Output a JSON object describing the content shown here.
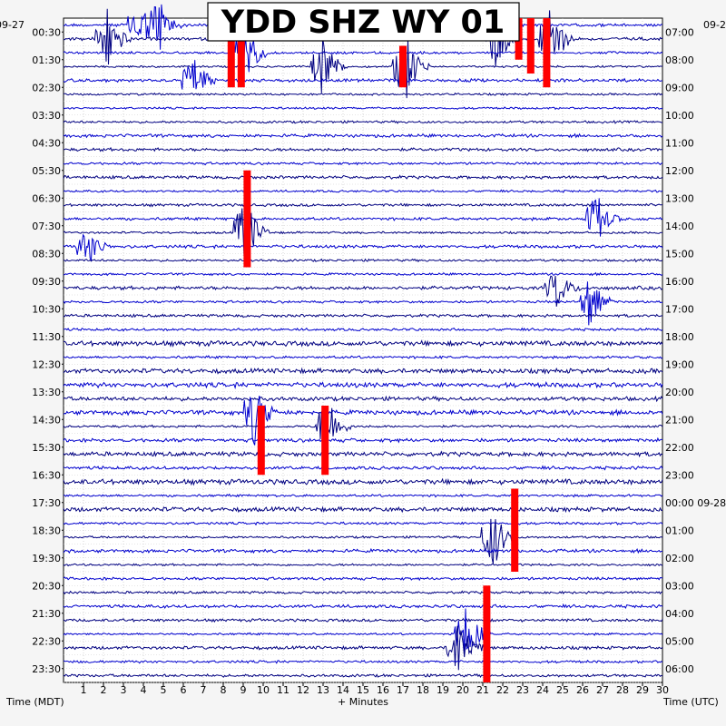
{
  "chart_data": {
    "type": "helicorder",
    "title": "YDD SHZ WY 01",
    "left_corner_date": "09-27",
    "right_corner_date": "09-2",
    "xlabel_left": "Time (MDT)",
    "xlabel_center": "+ Minutes",
    "xlabel_right": "Time (UTC)",
    "xlim": [
      0,
      30
    ],
    "x_ticks": [
      "1",
      "2",
      "3",
      "4",
      "5",
      "6",
      "7",
      "8",
      "9",
      "10",
      "11",
      "12",
      "13",
      "14",
      "15",
      "16",
      "17",
      "18",
      "19",
      "20",
      "21",
      "22",
      "23",
      "24",
      "25",
      "26",
      "27",
      "28",
      "29",
      "30"
    ],
    "left_times": [
      "00:30",
      "01:30",
      "02:30",
      "03:30",
      "04:30",
      "05:30",
      "06:30",
      "07:30",
      "08:30",
      "09:30",
      "10:30",
      "11:30",
      "12:30",
      "13:30",
      "14:30",
      "15:30",
      "16:30",
      "17:30",
      "18:30",
      "19:30",
      "20:30",
      "21:30",
      "22:30",
      "23:30"
    ],
    "right_times": [
      "07:00",
      "08:00",
      "09:00",
      "10:00",
      "11:00",
      "12:00",
      "13:00",
      "14:00",
      "15:00",
      "16:00",
      "17:00",
      "18:00",
      "19:00",
      "20:00",
      "21:00",
      "22:00",
      "23:00",
      "00:00 09-28",
      "01:00",
      "02:00",
      "03:00",
      "04:00",
      "05:00",
      "06:00"
    ],
    "trace_colors": [
      "#0000cd",
      "#000080"
    ],
    "clip_color": "#ff0000",
    "trace_count": 48,
    "events": [
      {
        "trace": 1,
        "minute": 2.0,
        "amp": 2.5
      },
      {
        "trace": 0,
        "minute": 3.6,
        "amp": 2.0
      },
      {
        "trace": 0,
        "minute": 4.6,
        "amp": 2.0
      },
      {
        "trace": 4,
        "minute": 6.3,
        "amp": 2.0
      },
      {
        "trace": 2,
        "minute": 8.8,
        "amp": 3.0
      },
      {
        "trace": 3,
        "minute": 12.8,
        "amp": 2.5
      },
      {
        "trace": 3,
        "minute": 16.9,
        "amp": 3.0
      },
      {
        "trace": 1,
        "minute": 21.5,
        "amp": 2.5
      },
      {
        "trace": 1,
        "minute": 24.2,
        "amp": 3.0
      },
      {
        "trace": 14,
        "minute": 26.5,
        "amp": 2.0
      },
      {
        "trace": 15,
        "minute": 8.9,
        "amp": 3.0
      },
      {
        "trace": 16,
        "minute": 1.0,
        "amp": 1.5
      },
      {
        "trace": 19,
        "minute": 24.5,
        "amp": 1.5
      },
      {
        "trace": 20,
        "minute": 26.2,
        "amp": 2.0
      },
      {
        "trace": 28,
        "minute": 9.4,
        "amp": 2.5
      },
      {
        "trace": 29,
        "minute": 13.0,
        "amp": 2.5
      },
      {
        "trace": 37,
        "minute": 21.3,
        "amp": 2.5
      },
      {
        "trace": 44,
        "minute": 20.0,
        "amp": 2.5
      },
      {
        "trace": 45,
        "minute": 19.6,
        "amp": 2.5
      }
    ],
    "clip_bars": [
      {
        "minute": 8.4,
        "from_trace": 0,
        "to_trace": 5
      },
      {
        "minute": 8.9,
        "from_trace": 0,
        "to_trace": 5
      },
      {
        "minute": 17.0,
        "from_trace": 2,
        "to_trace": 5
      },
      {
        "minute": 22.8,
        "from_trace": 0,
        "to_trace": 3
      },
      {
        "minute": 23.4,
        "from_trace": 0,
        "to_trace": 4
      },
      {
        "minute": 24.2,
        "from_trace": 0,
        "to_trace": 5
      },
      {
        "minute": 9.2,
        "from_trace": 11,
        "to_trace": 18
      },
      {
        "minute": 9.9,
        "from_trace": 28,
        "to_trace": 33
      },
      {
        "minute": 13.1,
        "from_trace": 28,
        "to_trace": 33
      },
      {
        "minute": 22.6,
        "from_trace": 34,
        "to_trace": 40
      },
      {
        "minute": 21.2,
        "from_trace": 41,
        "to_trace": 48
      }
    ]
  }
}
